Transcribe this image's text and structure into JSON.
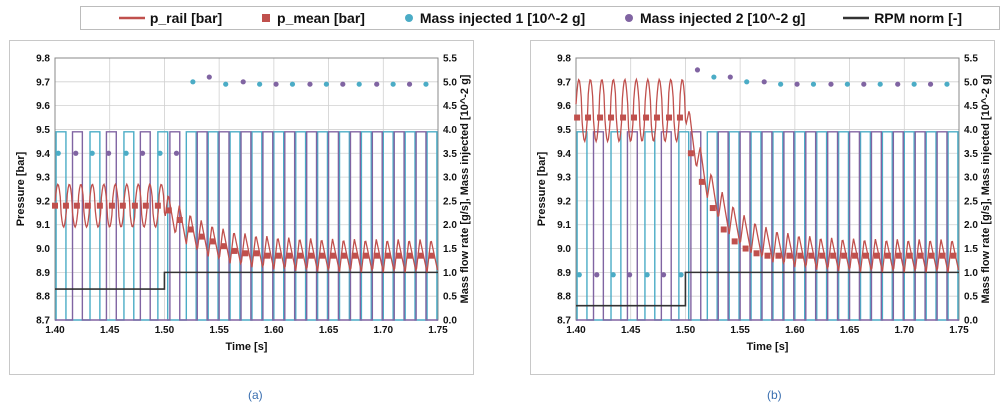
{
  "legend": {
    "items": [
      {
        "label": "p_rail [bar]",
        "marker": "line",
        "color": "#c0504d"
      },
      {
        "label": "p_mean [bar]",
        "marker": "square",
        "color": "#c0504d"
      },
      {
        "label": "Mass injected 1 [10^-2 g]",
        "marker": "circle",
        "color": "#4bacc6"
      },
      {
        "label": "Mass injected 2 [10^-2 g]",
        "marker": "circle",
        "color": "#8064a2"
      },
      {
        "label": "RPM norm [-]",
        "marker": "line",
        "color": "#333333"
      }
    ]
  },
  "colors": {
    "p_rail": "#c0504d",
    "p_mean": "#c0504d",
    "flow1": "#4bacc6",
    "flow2": "#8064a2",
    "mass1": "#4bacc6",
    "mass2": "#8064a2",
    "rpm": "#333333",
    "grid": "#d0d0d0"
  },
  "chart_data": [
    {
      "panel_label": "(a)",
      "type": "line",
      "xlabel": "Time [s]",
      "ylabel": "Pressure [bar]",
      "y2label": "Mass flow rate [g/s], Mass injected [10^-2 g]",
      "xlim": [
        1.4,
        1.75
      ],
      "ylim": [
        8.7,
        9.8
      ],
      "y2lim": [
        0,
        5.5
      ],
      "x_ticks": [
        "1.40",
        "1.45",
        "1.50",
        "1.55",
        "1.60",
        "1.65",
        "1.70",
        "1.75"
      ],
      "y_ticks": [
        "8.7",
        "8.8",
        "8.9",
        "9.0",
        "9.1",
        "9.2",
        "9.3",
        "9.4",
        "9.5",
        "9.6",
        "9.7",
        "9.8"
      ],
      "y2_ticks": [
        "0.0",
        "0.5",
        "1.0",
        "1.5",
        "2.0",
        "2.5",
        "3.0",
        "3.5",
        "4.0",
        "4.5",
        "5.0",
        "5.5"
      ],
      "grid": true,
      "p_mean": {
        "x": [
          1.4,
          1.41,
          1.42,
          1.43,
          1.441,
          1.452,
          1.462,
          1.473,
          1.483,
          1.494,
          1.504,
          1.514,
          1.524,
          1.534,
          1.544,
          1.554,
          1.564,
          1.574,
          1.584,
          1.594,
          1.604,
          1.614,
          1.624,
          1.634,
          1.644,
          1.654,
          1.664,
          1.674,
          1.684,
          1.694,
          1.704,
          1.714,
          1.724,
          1.734,
          1.744
        ],
        "y": [
          9.18,
          9.18,
          9.18,
          9.18,
          9.18,
          9.18,
          9.18,
          9.18,
          9.18,
          9.18,
          9.16,
          9.12,
          9.08,
          9.05,
          9.03,
          9.01,
          8.99,
          8.98,
          8.98,
          8.97,
          8.97,
          8.97,
          8.97,
          8.97,
          8.97,
          8.97,
          8.97,
          8.97,
          8.97,
          8.97,
          8.97,
          8.97,
          8.97,
          8.97,
          8.97
        ]
      },
      "p_rail": {
        "period_before": 0.0105,
        "period_after": 0.01,
        "amplitude_before": 0.09,
        "amplitude_after": 0.07,
        "mean_before": 9.18,
        "settle_tau": 0.035,
        "mean_after": 8.97,
        "switch_x": 1.5
      },
      "mass_injected_1": {
        "x": [
          1.403,
          1.434,
          1.465,
          1.496,
          1.526,
          1.556,
          1.587,
          1.617,
          1.648,
          1.678,
          1.709,
          1.739
        ],
        "y": [
          3.5,
          3.5,
          3.5,
          3.5,
          5.0,
          4.95,
          4.95,
          4.95,
          4.95,
          4.95,
          4.95,
          4.95
        ]
      },
      "mass_injected_2": {
        "x": [
          1.419,
          1.449,
          1.48,
          1.511,
          1.541,
          1.572,
          1.602,
          1.633,
          1.663,
          1.694,
          1.724
        ],
        "y": [
          3.5,
          3.5,
          3.5,
          3.5,
          5.1,
          5.0,
          4.95,
          4.95,
          4.95,
          4.95,
          4.95
        ]
      },
      "mass_flow_1_pulses": {
        "start_x": [
          1.401,
          1.432,
          1.463,
          1.494,
          1.52,
          1.54,
          1.56,
          1.58,
          1.6,
          1.62,
          1.64,
          1.66,
          1.68,
          1.7,
          1.72,
          1.74
        ],
        "width": 0.009,
        "height": 3.95
      },
      "mass_flow_2_pulses": {
        "start_x": [
          1.416,
          1.447,
          1.478,
          1.505,
          1.53,
          1.55,
          1.57,
          1.59,
          1.61,
          1.63,
          1.65,
          1.67,
          1.69,
          1.71,
          1.73
        ],
        "width": 0.009,
        "height": 3.95
      },
      "rpm_norm": {
        "x": [
          1.4,
          1.5,
          1.5,
          1.75
        ],
        "y": [
          0.65,
          0.65,
          1.0,
          1.0
        ]
      }
    },
    {
      "panel_label": "(b)",
      "type": "line",
      "xlabel": "Time [s]",
      "ylabel": "Pressure [bar]",
      "y2label": "Mass flow rate [g/s], Mass injected [10^-2 g]",
      "xlim": [
        1.4,
        1.75
      ],
      "ylim": [
        8.7,
        9.8
      ],
      "y2lim": [
        0,
        5.5
      ],
      "x_ticks": [
        "1.40",
        "1.45",
        "1.50",
        "1.55",
        "1.60",
        "1.65",
        "1.70",
        "1.75"
      ],
      "y_ticks": [
        "8.7",
        "8.8",
        "8.9",
        "9.0",
        "9.1",
        "9.2",
        "9.3",
        "9.4",
        "9.5",
        "9.6",
        "9.7",
        "9.8"
      ],
      "y2_ticks": [
        "0.0",
        "0.5",
        "1.0",
        "1.5",
        "2.0",
        "2.5",
        "3.0",
        "3.5",
        "4.0",
        "4.5",
        "5.0",
        "5.5"
      ],
      "grid": true,
      "p_mean": {
        "x": [
          1.401,
          1.411,
          1.422,
          1.432,
          1.443,
          1.453,
          1.464,
          1.474,
          1.485,
          1.495,
          1.505,
          1.515,
          1.525,
          1.535,
          1.545,
          1.555,
          1.565,
          1.575,
          1.585,
          1.595,
          1.605,
          1.615,
          1.625,
          1.635,
          1.645,
          1.655,
          1.665,
          1.675,
          1.685,
          1.695,
          1.705,
          1.715,
          1.725,
          1.735,
          1.745
        ],
        "y": [
          9.55,
          9.55,
          9.55,
          9.55,
          9.55,
          9.55,
          9.55,
          9.55,
          9.55,
          9.55,
          9.4,
          9.28,
          9.17,
          9.08,
          9.03,
          9.0,
          8.98,
          8.97,
          8.97,
          8.97,
          8.97,
          8.97,
          8.97,
          8.97,
          8.97,
          8.97,
          8.97,
          8.97,
          8.97,
          8.97,
          8.97,
          8.97,
          8.97,
          8.97,
          8.97
        ]
      },
      "p_rail": {
        "period_before": 0.0105,
        "period_after": 0.01,
        "amplitude_before": 0.13,
        "amplitude_after": 0.07,
        "mean_before": 9.58,
        "settle_tau": 0.03,
        "mean_after": 8.97,
        "switch_x": 1.5
      },
      "mass_injected_1": {
        "x": [
          1.403,
          1.434,
          1.465,
          1.496,
          1.526,
          1.556,
          1.587,
          1.617,
          1.648,
          1.678,
          1.709,
          1.739
        ],
        "y": [
          0.95,
          0.95,
          0.95,
          0.95,
          5.1,
          5.0,
          4.95,
          4.95,
          4.95,
          4.95,
          4.95,
          4.95
        ]
      },
      "mass_injected_2": {
        "x": [
          1.419,
          1.449,
          1.48,
          1.511,
          1.541,
          1.572,
          1.602,
          1.633,
          1.663,
          1.694,
          1.724
        ],
        "y": [
          0.95,
          0.95,
          0.95,
          5.25,
          5.1,
          5.0,
          4.95,
          4.95,
          4.95,
          4.95,
          4.95
        ]
      },
      "mass_flow_1_pulses": {
        "start_x": [
          1.401,
          1.432,
          1.463,
          1.494,
          1.52,
          1.54,
          1.56,
          1.58,
          1.6,
          1.62,
          1.64,
          1.66,
          1.68,
          1.7,
          1.72,
          1.74
        ],
        "width": 0.009,
        "height": 3.95
      },
      "mass_flow_2_pulses": {
        "start_x": [
          1.416,
          1.447,
          1.478,
          1.505,
          1.53,
          1.55,
          1.57,
          1.59,
          1.61,
          1.63,
          1.65,
          1.67,
          1.69,
          1.71,
          1.73
        ],
        "width": 0.009,
        "height": 3.95
      },
      "rpm_norm": {
        "x": [
          1.4,
          1.5,
          1.5,
          1.75
        ],
        "y": [
          0.3,
          0.3,
          1.0,
          1.0
        ]
      }
    }
  ]
}
